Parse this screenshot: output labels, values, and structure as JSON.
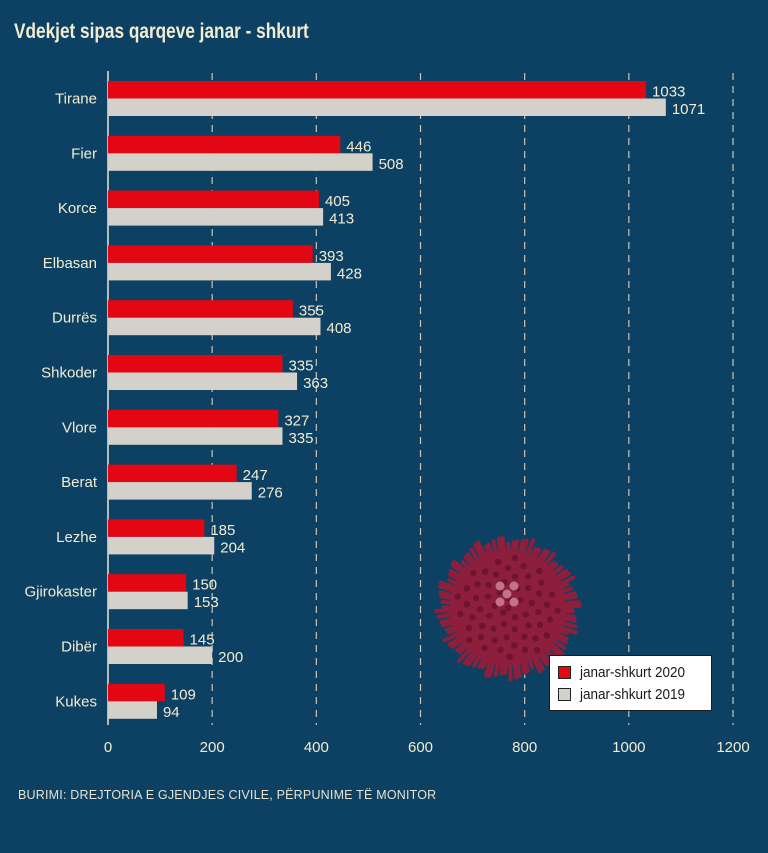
{
  "title": "Vdekjet sipas qarqeve janar - shkurt",
  "source": "BURIMI: DREJTORIA E GJENDJES CIVILE, PËRPUNIME TË MONITOR",
  "colors": {
    "background": "#0d4163",
    "series_2020": "#e30613",
    "series_2019": "#d4d1cb",
    "text": "#f2ecd2",
    "virus": "#8e1f3c"
  },
  "illustration": "coronavirus-icon",
  "chart_data": {
    "type": "bar",
    "orientation": "horizontal",
    "title": "Vdekjet sipas qarqeve janar - shkurt",
    "categories": [
      "Tirane",
      "Fier",
      "Korce",
      "Elbasan",
      "Durrës",
      "Shkoder",
      "Vlore",
      "Berat",
      "Lezhe",
      "Gjirokaster",
      "Dibër",
      "Kukes"
    ],
    "series": [
      {
        "name": "janar-shkurt 2020",
        "values": [
          1033,
          446,
          405,
          393,
          355,
          335,
          327,
          247,
          185,
          150,
          145,
          109
        ]
      },
      {
        "name": "janar-shkurt 2019",
        "values": [
          1071,
          508,
          413,
          428,
          408,
          363,
          335,
          276,
          204,
          153,
          200,
          94
        ]
      }
    ],
    "xlim": [
      0,
      1200
    ],
    "xticks": [
      0,
      200,
      400,
      600,
      800,
      1000,
      1200
    ],
    "grid": true,
    "legend_position": "bottom-right"
  }
}
